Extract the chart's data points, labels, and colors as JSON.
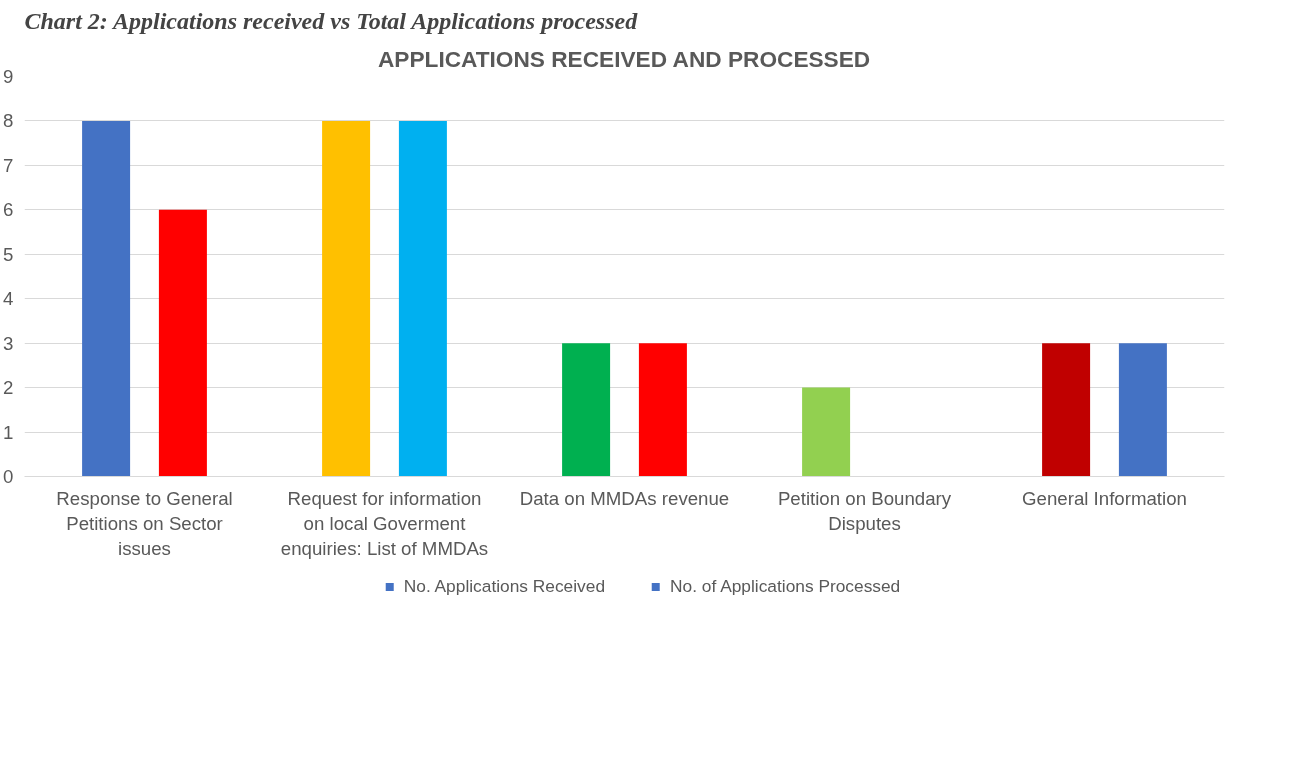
{
  "chart_data": {
    "type": "bar",
    "title": "APPLICATIONS RECEIVED AND PROCESSED",
    "annotations": [
      "Chart 2: Applications received vs Total Applications processed"
    ],
    "categories": [
      "Response to General Petitions on Sector issues",
      "Request for information on local Goverment enquiries: List of MMDAs",
      "Data on MMDAs revenue",
      "Petition on Boundary Disputes",
      "General Information"
    ],
    "series": [
      {
        "name": "No. Applications Received",
        "color": "#4472c4",
        "colors": [
          "#4472c4",
          "#ffc000",
          "#00b050",
          "#92d050",
          "#c00000"
        ],
        "values": [
          8,
          8,
          3,
          2,
          3
        ]
      },
      {
        "name": "No. of Applications Processed",
        "color": "#4472c4",
        "colors": [
          "#ff0000",
          "#00b0f0",
          "#ff0000",
          "#ff0000",
          "#4472c4"
        ],
        "values": [
          6,
          8,
          3,
          null,
          3
        ]
      }
    ],
    "ylim": [
      0,
      9
    ],
    "yticks": [
      0,
      1,
      2,
      3,
      4,
      5,
      6,
      7,
      8,
      9
    ],
    "grid": "y",
    "legend": "bottom"
  }
}
